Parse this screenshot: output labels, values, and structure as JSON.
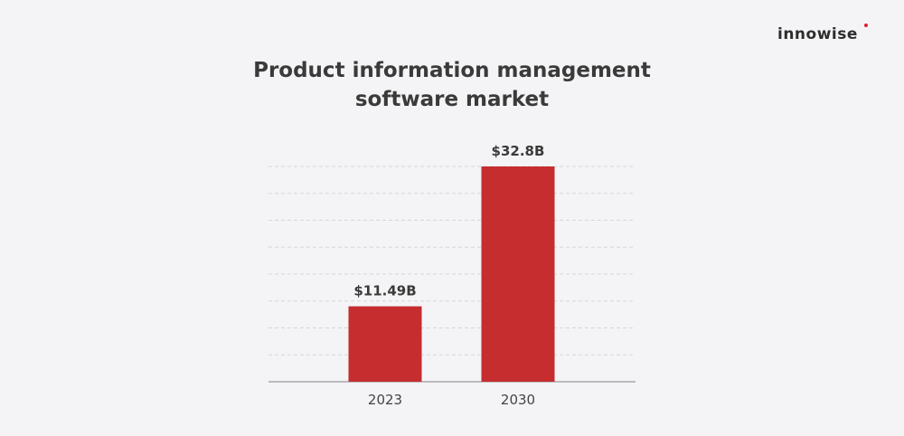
{
  "brand": {
    "name": "innowise",
    "dot_color": "#d9232d"
  },
  "chart_data": {
    "type": "bar",
    "title_lines": [
      "Product information management",
      "software market"
    ],
    "categories": [
      "2023",
      "2030"
    ],
    "values": [
      11.49,
      32.8
    ],
    "value_labels": [
      "$11.49B",
      "$32.8B"
    ],
    "unit": "USD billions",
    "ylim": [
      0,
      32.8
    ],
    "grid": true,
    "bar_color": "#c52d2f",
    "grid_color": "#d6d6da",
    "axis_color": "#9a9a9e"
  }
}
